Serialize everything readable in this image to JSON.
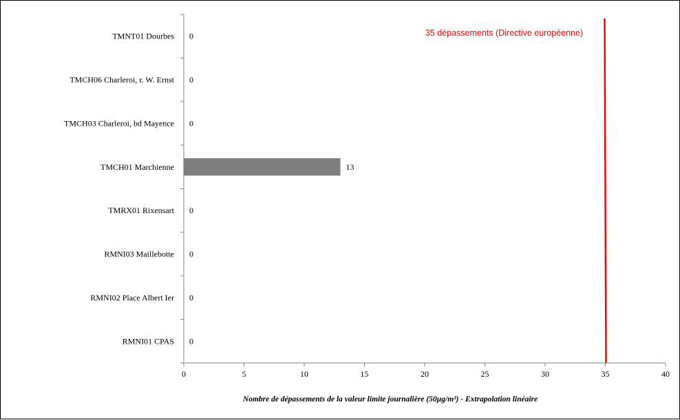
{
  "chart_data": {
    "type": "bar",
    "orientation": "horizontal",
    "categories": [
      "TMNT01 Dourbes",
      "TMCH06 Charleroi, r. W. Ernst",
      "TMCH03 Charleroi, bd Mayence",
      "TMCH01 Marchienne",
      "TMRX01 Rixensart",
      "RMNI03 Maillebotte",
      "RMNI02  Place Albert Ier",
      "RMNI01 CPAS"
    ],
    "values": [
      0,
      0,
      0,
      13,
      0,
      0,
      0,
      0
    ],
    "data_labels": [
      "0",
      "0",
      "0",
      "13",
      "0",
      "0",
      "0",
      "0"
    ],
    "xlabel": "Nombre de dépassements de la valeur limite journalière (50µg/m³) - Extrapolation linéaire",
    "xlim": [
      0,
      40
    ],
    "xticks": [
      "0",
      "5",
      "10",
      "15",
      "20",
      "25",
      "30",
      "35",
      "40"
    ],
    "grid": false,
    "bar_color": "#7f7f7f",
    "threshold": {
      "value": 35,
      "label": "35 dépassements (Directive européenne)",
      "color": "#ff0000"
    }
  }
}
